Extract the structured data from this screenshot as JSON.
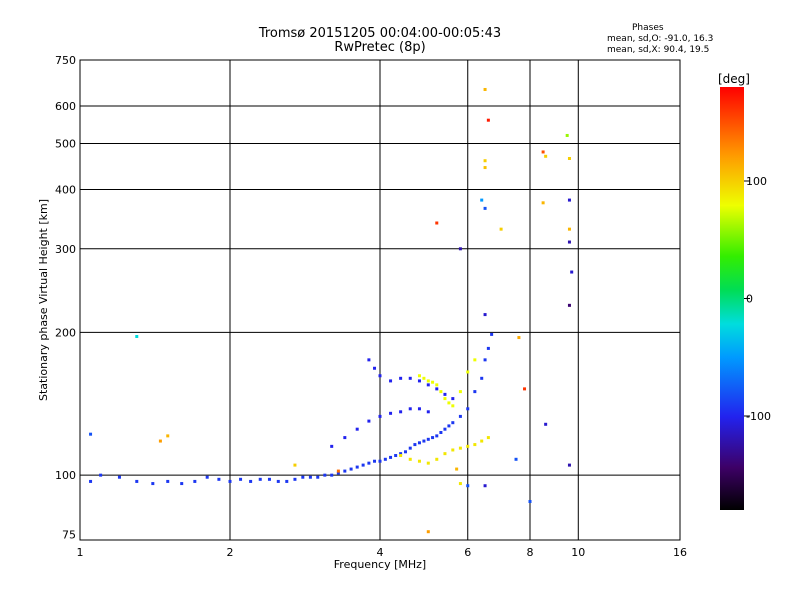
{
  "chart_data": {
    "type": "scatter",
    "title": "Tromsø 20151205 00:04:00-00:05:43",
    "subtitle": "RwPretec (8p)",
    "xlabel": "Frequency [MHz]",
    "ylabel": "Stationary phase Virtual Height [km]",
    "xscale": "log",
    "yscale": "log",
    "xlim": [
      1,
      16
    ],
    "ylim": [
      73,
      750
    ],
    "xticks": [
      1,
      2,
      4,
      6,
      8,
      10,
      16
    ],
    "xtick_labels": [
      "1",
      "2",
      "4",
      "6",
      "8",
      "10",
      "16"
    ],
    "yticks": [
      75,
      100,
      200,
      300,
      400,
      500,
      600,
      750
    ],
    "ytick_labels": [
      "75",
      "100",
      "200",
      "300",
      "400",
      "500",
      "600",
      "750"
    ],
    "grid": true,
    "phase_stats": {
      "heading": "Phases",
      "o_mode": "mean, sd,O: -91.0, 16.3",
      "x_mode": "mean, sd,X:  90.4, 19.5"
    },
    "colorbar": {
      "label": "[deg]",
      "range": [
        -180,
        180
      ],
      "ticks": [
        100,
        0,
        -100
      ],
      "tick_labels": [
        "100",
        "0",
        "-100"
      ]
    },
    "series": [
      {
        "name": "O-mode trace",
        "phase": -91,
        "points": [
          [
            1.05,
            97
          ],
          [
            1.1,
            100
          ],
          [
            1.2,
            99
          ],
          [
            1.3,
            97
          ],
          [
            1.4,
            96
          ],
          [
            1.5,
            97
          ],
          [
            1.6,
            96
          ],
          [
            1.7,
            97
          ],
          [
            1.8,
            99
          ],
          [
            1.9,
            98
          ],
          [
            2.0,
            97
          ],
          [
            2.1,
            98
          ],
          [
            2.2,
            97
          ],
          [
            2.3,
            98
          ],
          [
            2.4,
            98
          ],
          [
            2.5,
            97
          ],
          [
            2.6,
            97
          ],
          [
            2.7,
            98
          ],
          [
            2.8,
            99
          ],
          [
            2.9,
            99
          ],
          [
            3.0,
            99
          ],
          [
            3.1,
            100
          ],
          [
            3.2,
            100
          ],
          [
            3.3,
            101
          ],
          [
            3.4,
            102
          ],
          [
            3.5,
            103
          ],
          [
            3.6,
            104
          ],
          [
            3.7,
            105
          ],
          [
            3.8,
            106
          ],
          [
            3.9,
            107
          ],
          [
            4.0,
            107
          ],
          [
            4.1,
            108
          ],
          [
            4.2,
            109
          ],
          [
            4.3,
            110
          ],
          [
            4.4,
            111
          ],
          [
            4.5,
            112
          ],
          [
            4.6,
            114
          ],
          [
            4.7,
            116
          ],
          [
            4.8,
            117
          ],
          [
            4.9,
            118
          ],
          [
            5.0,
            119
          ],
          [
            5.1,
            120
          ],
          [
            5.2,
            121
          ],
          [
            5.3,
            123
          ],
          [
            5.4,
            125
          ],
          [
            5.5,
            127
          ],
          [
            5.6,
            129
          ],
          [
            5.8,
            133
          ],
          [
            6.0,
            138
          ],
          [
            6.2,
            150
          ],
          [
            6.4,
            160
          ],
          [
            6.5,
            175
          ],
          [
            6.6,
            185
          ],
          [
            6.7,
            198
          ]
        ]
      },
      {
        "name": "X-mode trace",
        "phase": 90,
        "points": [
          [
            4.4,
            110
          ],
          [
            4.6,
            108
          ],
          [
            4.8,
            107
          ],
          [
            5.0,
            106
          ],
          [
            5.2,
            108
          ],
          [
            5.4,
            111
          ],
          [
            5.6,
            113
          ],
          [
            5.8,
            114
          ],
          [
            6.0,
            115
          ],
          [
            6.2,
            116
          ],
          [
            6.4,
            118
          ],
          [
            6.6,
            120
          ]
        ]
      },
      {
        "name": "Upper O cluster",
        "phase": -100,
        "points": [
          [
            3.8,
            175
          ],
          [
            3.9,
            168
          ],
          [
            4.0,
            162
          ],
          [
            4.2,
            158
          ],
          [
            4.4,
            160
          ],
          [
            4.6,
            160
          ],
          [
            4.8,
            158
          ],
          [
            5.0,
            155
          ],
          [
            5.2,
            152
          ],
          [
            5.4,
            148
          ],
          [
            5.6,
            145
          ]
        ]
      },
      {
        "name": "Upper X cluster",
        "phase": 80,
        "points": [
          [
            4.8,
            162
          ],
          [
            4.9,
            160
          ],
          [
            5.0,
            158
          ],
          [
            5.1,
            157
          ],
          [
            5.2,
            155
          ],
          [
            5.3,
            150
          ],
          [
            5.4,
            145
          ],
          [
            5.5,
            142
          ],
          [
            5.6,
            140
          ],
          [
            5.8,
            150
          ],
          [
            6.0,
            165
          ],
          [
            6.2,
            175
          ]
        ]
      },
      {
        "name": "Mid O cluster",
        "phase": -100,
        "points": [
          [
            3.2,
            115
          ],
          [
            3.4,
            120
          ],
          [
            3.6,
            125
          ],
          [
            3.8,
            130
          ],
          [
            4.0,
            133
          ],
          [
            4.2,
            135
          ],
          [
            4.4,
            136
          ],
          [
            4.6,
            138
          ],
          [
            4.8,
            138
          ],
          [
            5.0,
            136
          ]
        ]
      },
      {
        "name": "Scattered echoes",
        "phase": 0,
        "points": [
          [
            1.05,
            122,
            -80
          ],
          [
            1.3,
            196,
            -20
          ],
          [
            1.45,
            118,
            120
          ],
          [
            1.5,
            121,
            110
          ],
          [
            5.2,
            340,
            160
          ],
          [
            5.8,
            300,
            -120
          ],
          [
            6.5,
            650,
            110
          ],
          [
            6.6,
            560,
            170
          ],
          [
            6.5,
            460,
            100
          ],
          [
            6.5,
            445,
            105
          ],
          [
            6.4,
            380,
            -50
          ],
          [
            6.5,
            365,
            -80
          ],
          [
            7.0,
            330,
            100
          ],
          [
            7.6,
            195,
            115
          ],
          [
            7.8,
            152,
            160
          ],
          [
            8.5,
            480,
            150
          ],
          [
            8.6,
            470,
            100
          ],
          [
            8.5,
            375,
            110
          ],
          [
            8.6,
            128,
            -110
          ],
          [
            9.5,
            520,
            60
          ],
          [
            9.6,
            465,
            100
          ],
          [
            9.6,
            380,
            -110
          ],
          [
            9.6,
            330,
            110
          ],
          [
            9.6,
            310,
            -120
          ],
          [
            9.7,
            268,
            -110
          ],
          [
            9.6,
            228,
            -140
          ],
          [
            9.6,
            105,
            -120
          ],
          [
            6.5,
            218,
            -110
          ],
          [
            6.5,
            95,
            -110
          ],
          [
            7.5,
            108,
            -80
          ],
          [
            8.0,
            88,
            -80
          ],
          [
            5.0,
            76,
            120
          ],
          [
            5.7,
            103,
            110
          ],
          [
            5.8,
            96,
            90
          ],
          [
            6.0,
            95,
            -80
          ],
          [
            2.7,
            105,
            100
          ],
          [
            3.3,
            102,
            140
          ]
        ]
      }
    ]
  }
}
